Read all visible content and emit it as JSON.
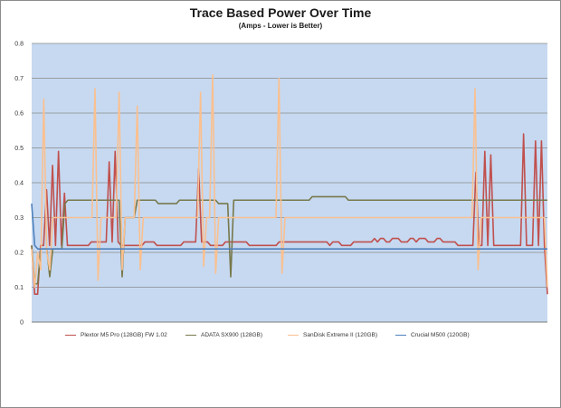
{
  "chart_data": {
    "type": "line",
    "title": "Trace Based Power Over Time",
    "subtitle": "(Amps - Lower is Better)",
    "xlabel": "",
    "ylabel": "",
    "ylim": [
      0,
      0.8
    ],
    "yticks": [
      "0",
      "0.1",
      "0.2",
      "0.3",
      "0.4",
      "0.5",
      "0.6",
      "0.7",
      "0.8"
    ],
    "grid": true,
    "legend_position": "bottom",
    "plot_background": "#c6d9f1",
    "series": [
      {
        "name": "Plextor M5 Pro (128GB) FW 1.02",
        "color": "#c0504d",
        "values": [
          0.22,
          0.08,
          0.08,
          0.22,
          0.22,
          0.38,
          0.22,
          0.45,
          0.22,
          0.49,
          0.22,
          0.37,
          0.22,
          0.22,
          0.22,
          0.22,
          0.22,
          0.22,
          0.22,
          0.22,
          0.23,
          0.23,
          0.23,
          0.23,
          0.23,
          0.23,
          0.46,
          0.23,
          0.49,
          0.23,
          0.22,
          0.22,
          0.22,
          0.22,
          0.22,
          0.22,
          0.22,
          0.22,
          0.23,
          0.23,
          0.23,
          0.23,
          0.22,
          0.22,
          0.22,
          0.22,
          0.22,
          0.22,
          0.22,
          0.22,
          0.22,
          0.23,
          0.23,
          0.23,
          0.23,
          0.23,
          0.44,
          0.23,
          0.23,
          0.23,
          0.22,
          0.22,
          0.22,
          0.22,
          0.22,
          0.23,
          0.23,
          0.23,
          0.23,
          0.23,
          0.23,
          0.23,
          0.23,
          0.22,
          0.22,
          0.22,
          0.22,
          0.22,
          0.22,
          0.22,
          0.22,
          0.22,
          0.22,
          0.23,
          0.23,
          0.23,
          0.23,
          0.23,
          0.23,
          0.23,
          0.23,
          0.23,
          0.23,
          0.23,
          0.23,
          0.23,
          0.23,
          0.23,
          0.23,
          0.23,
          0.22,
          0.23,
          0.23,
          0.23,
          0.22,
          0.22,
          0.22,
          0.22,
          0.23,
          0.23,
          0.23,
          0.23,
          0.23,
          0.23,
          0.23,
          0.24,
          0.23,
          0.24,
          0.24,
          0.23,
          0.23,
          0.24,
          0.24,
          0.24,
          0.23,
          0.23,
          0.23,
          0.24,
          0.24,
          0.23,
          0.24,
          0.24,
          0.24,
          0.23,
          0.23,
          0.23,
          0.24,
          0.24,
          0.23,
          0.23,
          0.23,
          0.23,
          0.23,
          0.22,
          0.22,
          0.22,
          0.22,
          0.22,
          0.22,
          0.43,
          0.22,
          0.22,
          0.49,
          0.22,
          0.48,
          0.22,
          0.22,
          0.22,
          0.22,
          0.22,
          0.22,
          0.22,
          0.22,
          0.22,
          0.22,
          0.54,
          0.22,
          0.22,
          0.22,
          0.52,
          0.22,
          0.52,
          0.22,
          0.08
        ]
      },
      {
        "name": "ADATA SX900 (128GB)",
        "color": "#77784a",
        "values": [
          0.22,
          0.11,
          0.11,
          0.21,
          0.21,
          0.21,
          0.13,
          0.21,
          0.21,
          0.21,
          0.21,
          0.34,
          0.35,
          0.35,
          0.35,
          0.35,
          0.35,
          0.35,
          0.35,
          0.35,
          0.35,
          0.35,
          0.35,
          0.35,
          0.35,
          0.35,
          0.35,
          0.35,
          0.35,
          0.35,
          0.13,
          0.3,
          0.3,
          0.3,
          0.3,
          0.35,
          0.35,
          0.35,
          0.35,
          0.35,
          0.35,
          0.35,
          0.34,
          0.34,
          0.34,
          0.34,
          0.34,
          0.34,
          0.34,
          0.35,
          0.35,
          0.35,
          0.35,
          0.35,
          0.35,
          0.35,
          0.35,
          0.35,
          0.35,
          0.35,
          0.35,
          0.35,
          0.34,
          0.34,
          0.34,
          0.34,
          0.13,
          0.35,
          0.35,
          0.35,
          0.35,
          0.35,
          0.35,
          0.35,
          0.35,
          0.35,
          0.35,
          0.35,
          0.35,
          0.35,
          0.35,
          0.35,
          0.35,
          0.35,
          0.35,
          0.35,
          0.35,
          0.35,
          0.35,
          0.35,
          0.35,
          0.35,
          0.35,
          0.36,
          0.36,
          0.36,
          0.36,
          0.36,
          0.36,
          0.36,
          0.36,
          0.36,
          0.36,
          0.36,
          0.36,
          0.35,
          0.35,
          0.35,
          0.35,
          0.35,
          0.35,
          0.35,
          0.35,
          0.35,
          0.35,
          0.35,
          0.35,
          0.35,
          0.35,
          0.35,
          0.35,
          0.35,
          0.35,
          0.35,
          0.35,
          0.35,
          0.35,
          0.35,
          0.35,
          0.35,
          0.35,
          0.35,
          0.35,
          0.35,
          0.35,
          0.35,
          0.35,
          0.35,
          0.35,
          0.35,
          0.35,
          0.35,
          0.35,
          0.35,
          0.35,
          0.35,
          0.35,
          0.35,
          0.35,
          0.35,
          0.35,
          0.35,
          0.35,
          0.35,
          0.35,
          0.35,
          0.35,
          0.35,
          0.35,
          0.35,
          0.35,
          0.35,
          0.35,
          0.35,
          0.35,
          0.35,
          0.35,
          0.35,
          0.35,
          0.35,
          0.35,
          0.35
        ]
      },
      {
        "name": "SanDisk Extreme II (120GB)",
        "color": "#fac090",
        "values": [
          0.21,
          0.1,
          0.2,
          0.15,
          0.64,
          0.2,
          0.15,
          0.3,
          0.3,
          0.3,
          0.3,
          0.3,
          0.3,
          0.3,
          0.3,
          0.3,
          0.3,
          0.3,
          0.3,
          0.3,
          0.3,
          0.67,
          0.12,
          0.3,
          0.3,
          0.3,
          0.3,
          0.3,
          0.3,
          0.66,
          0.15,
          0.3,
          0.3,
          0.3,
          0.3,
          0.62,
          0.15,
          0.3,
          0.3,
          0.3,
          0.3,
          0.3,
          0.3,
          0.3,
          0.3,
          0.3,
          0.3,
          0.3,
          0.3,
          0.3,
          0.3,
          0.3,
          0.3,
          0.3,
          0.3,
          0.3,
          0.66,
          0.16,
          0.3,
          0.3,
          0.71,
          0.14,
          0.3,
          0.3,
          0.3,
          0.3,
          0.3,
          0.3,
          0.3,
          0.3,
          0.3,
          0.3,
          0.3,
          0.3,
          0.3,
          0.3,
          0.3,
          0.3,
          0.3,
          0.3,
          0.3,
          0.3,
          0.7,
          0.14,
          0.3,
          0.3,
          0.3,
          0.3,
          0.3,
          0.3,
          0.3,
          0.3,
          0.3,
          0.3,
          0.3,
          0.3,
          0.3,
          0.3,
          0.3,
          0.3,
          0.3,
          0.3,
          0.3,
          0.3,
          0.3,
          0.3,
          0.3,
          0.3,
          0.3,
          0.3,
          0.3,
          0.3,
          0.3,
          0.3,
          0.3,
          0.3,
          0.3,
          0.3,
          0.3,
          0.3,
          0.3,
          0.3,
          0.3,
          0.3,
          0.3,
          0.3,
          0.3,
          0.3,
          0.3,
          0.3,
          0.3,
          0.3,
          0.3,
          0.3,
          0.3,
          0.3,
          0.3,
          0.3,
          0.3,
          0.3,
          0.3,
          0.3,
          0.3,
          0.3,
          0.3,
          0.3,
          0.3,
          0.67,
          0.15,
          0.3,
          0.3,
          0.3,
          0.3,
          0.3,
          0.3,
          0.3,
          0.3,
          0.3,
          0.3,
          0.3,
          0.3,
          0.3,
          0.3,
          0.3,
          0.3,
          0.3,
          0.3,
          0.3,
          0.3,
          0.3,
          0.3,
          0.1
        ]
      },
      {
        "name": "Crucial M500 (120GB)",
        "color": "#4f81bd",
        "values": [
          0.34,
          0.22,
          0.21,
          0.21,
          0.21,
          0.21,
          0.21,
          0.21,
          0.21,
          0.21,
          0.21,
          0.21,
          0.21,
          0.21,
          0.21,
          0.21,
          0.21,
          0.21,
          0.21,
          0.21,
          0.21,
          0.21,
          0.21,
          0.21,
          0.21,
          0.21,
          0.21,
          0.21,
          0.21,
          0.21,
          0.21,
          0.21,
          0.21,
          0.21,
          0.21,
          0.21,
          0.21,
          0.21,
          0.21,
          0.21,
          0.21,
          0.21,
          0.21,
          0.21,
          0.21,
          0.21,
          0.21,
          0.21,
          0.21,
          0.21,
          0.21,
          0.21,
          0.21,
          0.21,
          0.21,
          0.21,
          0.21,
          0.21,
          0.21,
          0.21,
          0.21,
          0.21,
          0.21,
          0.21,
          0.21,
          0.21,
          0.21,
          0.21,
          0.21,
          0.21,
          0.21,
          0.21,
          0.21,
          0.21,
          0.21,
          0.21,
          0.21,
          0.21,
          0.21,
          0.21,
          0.21,
          0.21,
          0.21,
          0.21,
          0.21,
          0.21,
          0.21,
          0.21,
          0.21,
          0.21,
          0.21,
          0.21,
          0.21,
          0.21,
          0.21,
          0.21,
          0.21,
          0.21,
          0.21,
          0.21,
          0.21,
          0.21,
          0.21,
          0.21,
          0.21,
          0.21,
          0.21,
          0.21,
          0.21,
          0.21,
          0.21,
          0.21,
          0.21,
          0.21,
          0.21,
          0.21,
          0.21,
          0.21,
          0.21,
          0.21,
          0.21,
          0.21,
          0.21,
          0.21,
          0.21,
          0.21,
          0.21,
          0.21,
          0.21,
          0.21,
          0.21,
          0.21,
          0.21,
          0.21,
          0.21,
          0.21,
          0.21,
          0.21,
          0.21,
          0.21,
          0.21,
          0.21,
          0.21,
          0.21,
          0.21,
          0.21,
          0.21,
          0.21,
          0.21,
          0.21,
          0.21,
          0.21,
          0.21,
          0.21,
          0.21,
          0.21,
          0.21,
          0.21,
          0.21,
          0.21,
          0.21,
          0.21,
          0.21,
          0.21,
          0.21,
          0.21,
          0.21,
          0.21,
          0.21,
          0.21
        ]
      }
    ]
  }
}
